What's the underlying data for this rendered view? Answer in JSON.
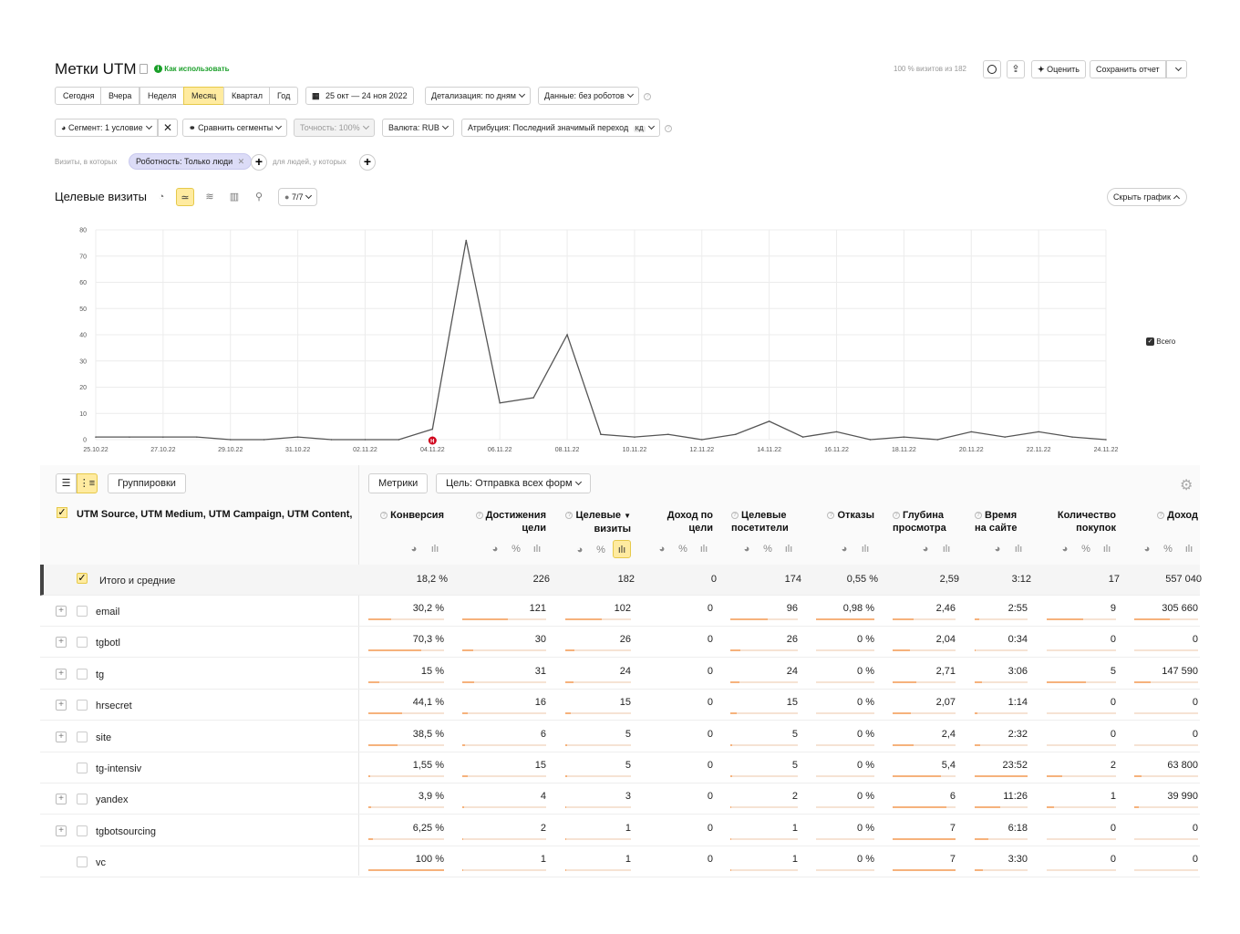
{
  "header": {
    "title": "Метки UTM",
    "how_to": "Как использовать",
    "visits_info": "100 % визитов из 182",
    "rate_label": "Оценить",
    "save_label": "Сохранить отчет"
  },
  "periods": [
    "Сегодня",
    "Вчера",
    "Неделя",
    "Месяц",
    "Квартал",
    "Год"
  ],
  "active_period": "Месяц",
  "date_range": "25 окт — 24 ноя 2022",
  "detail_label": "Детализация: по дням",
  "robots_label": "Данные: без роботов",
  "segment_label": "Сегмент: 1 условие",
  "compare_label": "Сравнить сегменты",
  "accuracy_label": "Точность: 100%",
  "currency_label": "Валюта: RUB",
  "attribution_label": "Атрибуция: Последний значимый переход",
  "attribution_badge": "КД",
  "filter": {
    "visits_prefix": "Визиты, в которых",
    "chip": "Роботность: Только люди",
    "people_prefix": "для людей, у которых"
  },
  "chart_section": {
    "title": "Целевые визиты",
    "notes_label": "7/7",
    "hide_label": "Скрыть график"
  },
  "chart_data": {
    "type": "line",
    "x": [
      "25.10.22",
      "26.10.22",
      "27.10.22",
      "28.10.22",
      "29.10.22",
      "30.10.22",
      "31.10.22",
      "01.11.22",
      "02.11.22",
      "03.11.22",
      "04.11.22",
      "05.11.22",
      "06.11.22",
      "07.11.22",
      "08.11.22",
      "09.11.22",
      "10.11.22",
      "11.11.22",
      "12.11.22",
      "13.11.22",
      "14.11.22",
      "15.11.22",
      "16.11.22",
      "17.11.22",
      "18.11.22",
      "19.11.22",
      "20.11.22",
      "21.11.22",
      "22.11.22",
      "23.11.22",
      "24.11.22"
    ],
    "tick_labels": [
      "25.10.22",
      "27.10.22",
      "29.10.22",
      "31.10.22",
      "02.11.22",
      "04.11.22",
      "06.11.22",
      "08.11.22",
      "10.11.22",
      "12.11.22",
      "14.11.22",
      "16.11.22",
      "18.11.22",
      "20.11.22",
      "22.11.22",
      "24.11.22"
    ],
    "weekend_ticks": [
      "29.10.22",
      "06.11.22",
      "12.11.22",
      "20.11.22"
    ],
    "series": [
      {
        "name": "Всего",
        "values": [
          1,
          1,
          1,
          1,
          0,
          0,
          1,
          0,
          0,
          0,
          4,
          76,
          14,
          16,
          40,
          2,
          1,
          2,
          0,
          2,
          7,
          1,
          3,
          0,
          1,
          0,
          3,
          1,
          3,
          1,
          0
        ]
      }
    ],
    "ylim": [
      0,
      80
    ],
    "yticks": [
      0,
      10,
      20,
      30,
      40,
      50,
      60,
      70,
      80
    ],
    "marker": {
      "x": "04.11.22",
      "label": "Н"
    },
    "legend": "right",
    "grid": true
  },
  "table": {
    "view_groupings": "Группировки",
    "metrics_label": "Метрики",
    "goal_label": "Цель: Отправка всех форм",
    "dimension_header": "UTM Source, UTM Medium, UTM Campaign, UTM Content, U",
    "columns": [
      {
        "l1": "Конверсия",
        "l2": ""
      },
      {
        "l1": "Достижения",
        "l2": "цели"
      },
      {
        "l1": "Целевые",
        "l2": "визиты"
      },
      {
        "l1": "Доход по",
        "l2": "цели"
      },
      {
        "l1": "Целевые",
        "l2": "посетители"
      },
      {
        "l1": "Отказы",
        "l2": ""
      },
      {
        "l1": "Глубина",
        "l2": "просмотра"
      },
      {
        "l1": "Время",
        "l2": "на сайте"
      },
      {
        "l1": "Количество",
        "l2": "покупок"
      },
      {
        "l1": "Доход",
        "l2": ""
      }
    ],
    "totals": {
      "name": "Итого и средние",
      "values": [
        "18,2 %",
        "226",
        "182",
        "0",
        "174",
        "0,55 %",
        "2,59",
        "3:12",
        "17",
        "557 040"
      ]
    },
    "rows": [
      {
        "name": "email",
        "values": [
          "30,2 %",
          "121",
          "102",
          "0",
          "96",
          "0,98 %",
          "2,46",
          "2:55",
          "9",
          "305 660"
        ],
        "bars": [
          0.3,
          0.54,
          0.56,
          0,
          0.55,
          1,
          0.34,
          0.09,
          0.53,
          0.55
        ]
      },
      {
        "name": "tgbotl",
        "values": [
          "70,3 %",
          "30",
          "26",
          "0",
          "26",
          "0 %",
          "2,04",
          "0:34",
          "0",
          "0"
        ],
        "bars": [
          0.7,
          0.13,
          0.14,
          0,
          0.15,
          0,
          0.28,
          0.02,
          0,
          0
        ]
      },
      {
        "name": "tg",
        "values": [
          "15 %",
          "31",
          "24",
          "0",
          "24",
          "0 %",
          "2,71",
          "3:06",
          "5",
          "147 590"
        ],
        "bars": [
          0.15,
          0.14,
          0.13,
          0,
          0.14,
          0,
          0.38,
          0.13,
          0.57,
          0.26
        ]
      },
      {
        "name": "hrsecret",
        "values": [
          "44,1 %",
          "16",
          "15",
          "0",
          "15",
          "0 %",
          "2,07",
          "1:14",
          "0",
          "0"
        ],
        "bars": [
          0.44,
          0.07,
          0.08,
          0,
          0.09,
          0,
          0.29,
          0.05,
          0,
          0
        ]
      },
      {
        "name": "site",
        "values": [
          "38,5 %",
          "6",
          "5",
          "0",
          "5",
          "0 %",
          "2,4",
          "2:32",
          "0",
          "0"
        ],
        "bars": [
          0.38,
          0.03,
          0.03,
          0,
          0.03,
          0,
          0.33,
          0.11,
          0,
          0
        ]
      },
      {
        "name": "tg-intensiv",
        "values": [
          "1,55 %",
          "15",
          "5",
          "0",
          "5",
          "0 %",
          "5,4",
          "23:52",
          "2",
          "63 800"
        ],
        "bars": [
          0.02,
          0.07,
          0.03,
          0,
          0.03,
          0,
          0.77,
          1,
          0.23,
          0.11
        ]
      },
      {
        "name": "yandex",
        "values": [
          "3,9 %",
          "4",
          "3",
          "0",
          "2",
          "0 %",
          "6",
          "11:26",
          "1",
          "39 990"
        ],
        "bars": [
          0.04,
          0.02,
          0.02,
          0,
          0.01,
          0,
          0.86,
          0.48,
          0.11,
          0.07
        ]
      },
      {
        "name": "tgbotsourcing",
        "values": [
          "6,25 %",
          "2",
          "1",
          "0",
          "1",
          "0 %",
          "7",
          "6:18",
          "0",
          "0"
        ],
        "bars": [
          0.06,
          0.01,
          0.01,
          0,
          0.01,
          0,
          1,
          0.26,
          0,
          0
        ]
      },
      {
        "name": "vc",
        "values": [
          "100 %",
          "1",
          "1",
          "0",
          "1",
          "0 %",
          "7",
          "3:30",
          "0",
          "0"
        ],
        "bars": [
          1,
          0.01,
          0.01,
          0,
          0.01,
          0,
          1,
          0.15,
          0,
          0
        ]
      }
    ],
    "expandable": [
      true,
      true,
      true,
      true,
      true,
      false,
      true,
      true,
      false
    ]
  },
  "colors": {
    "accent": "#ffeba0",
    "line": "#555555",
    "bar": "#f6b27c",
    "weekend": "#c0392b",
    "success": "#1a9f29"
  }
}
